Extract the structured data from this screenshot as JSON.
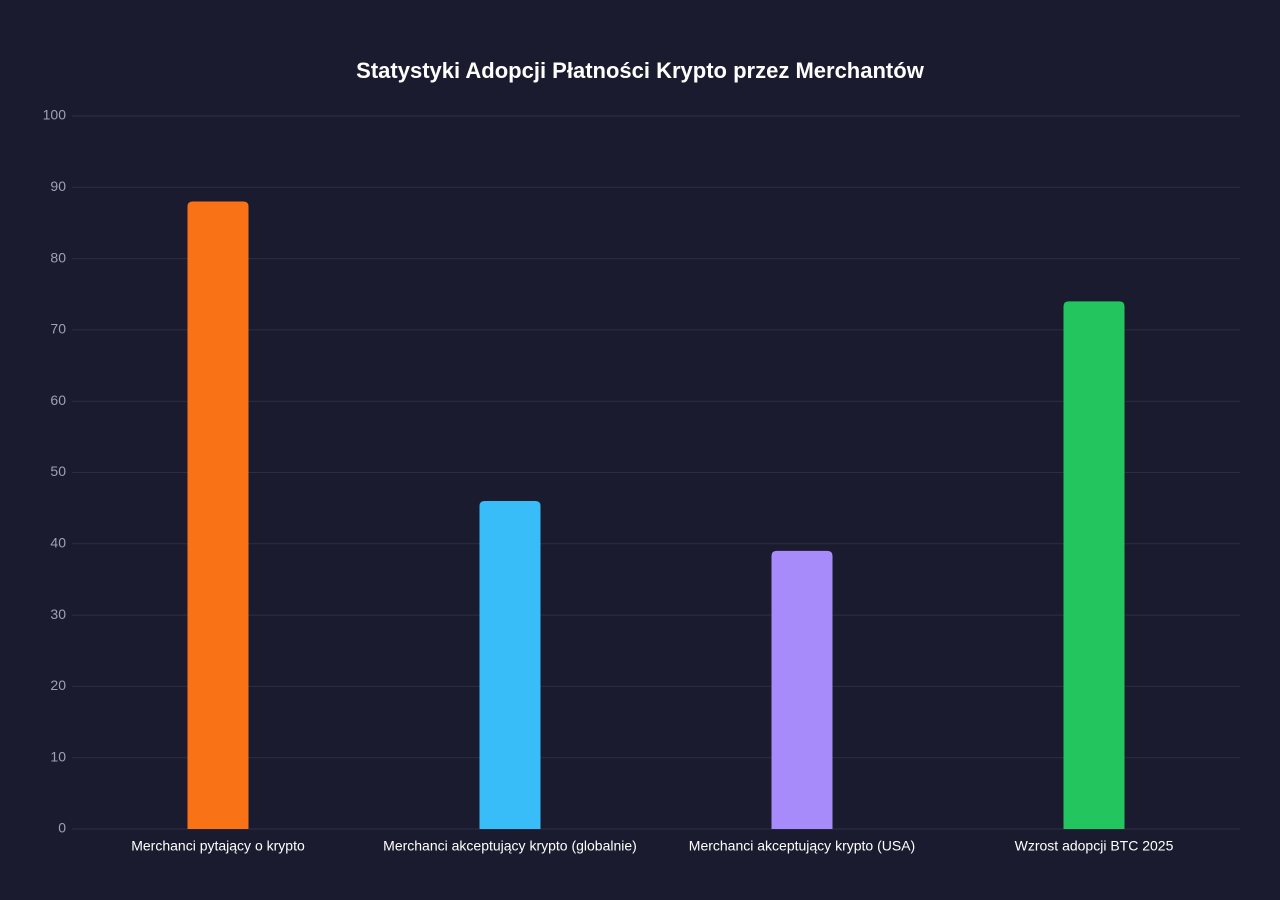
{
  "chart_data": {
    "type": "bar",
    "title": "Statystyki Adopcji Płatności Krypto przez Merchantów",
    "categories": [
      "Merchanci pytający o krypto",
      "Merchanci akceptujący krypto (globalnie)",
      "Merchanci akceptujący krypto (USA)",
      "Wzrost adopcji BTC 2025"
    ],
    "values": [
      88,
      46,
      39,
      74
    ],
    "colors": [
      "#f97316",
      "#38bdf8",
      "#a78bfa",
      "#22c55e"
    ],
    "ylim": [
      0,
      100
    ],
    "yticks": [
      0,
      10,
      20,
      30,
      40,
      50,
      60,
      70,
      80,
      90,
      100
    ],
    "grid": true
  }
}
